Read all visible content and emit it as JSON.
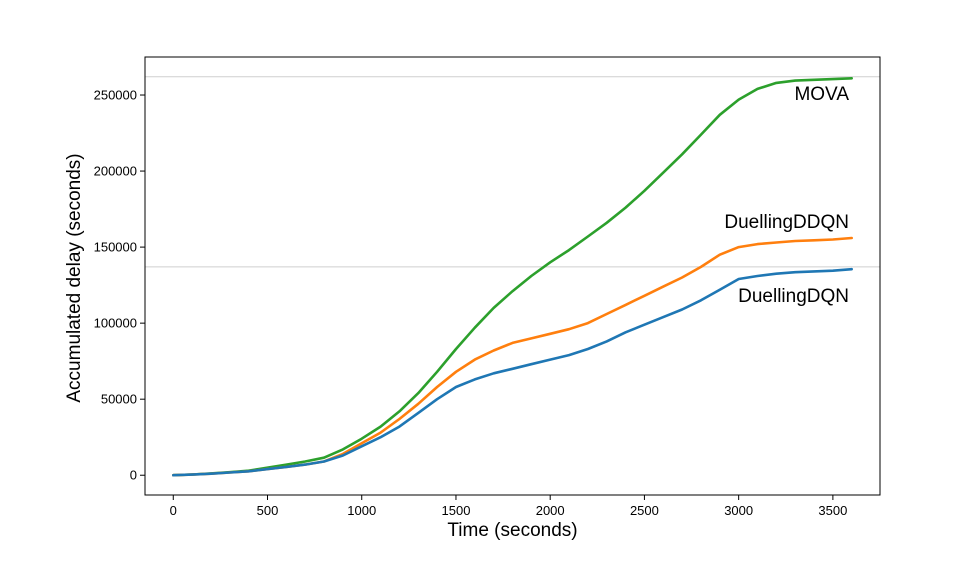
{
  "chart_data": {
    "type": "line",
    "title": "",
    "xlabel": "Time (seconds)",
    "ylabel": "Accumulated delay (seconds)",
    "xlim": [
      -150,
      3750
    ],
    "ylim": [
      -13000,
      275000
    ],
    "x_ticks": [
      0,
      500,
      1000,
      1500,
      2000,
      2500,
      3000,
      3500
    ],
    "y_ticks": [
      0,
      50000,
      100000,
      150000,
      200000,
      250000
    ],
    "grid": false,
    "legend": "none",
    "reference_lines": [
      262000,
      137000
    ],
    "x": [
      0,
      100,
      200,
      300,
      400,
      500,
      600,
      700,
      800,
      900,
      1000,
      1100,
      1200,
      1300,
      1400,
      1500,
      1600,
      1700,
      1800,
      1900,
      2000,
      2100,
      2200,
      2300,
      2400,
      2500,
      2600,
      2700,
      2800,
      2900,
      3000,
      3100,
      3200,
      3300,
      3400,
      3500,
      3600
    ],
    "series": [
      {
        "name": "MOVA",
        "color": "#2ca02c",
        "values": [
          0,
          500,
          1200,
          2000,
          3000,
          5000,
          7000,
          9000,
          11500,
          17000,
          24000,
          32000,
          42000,
          54000,
          68000,
          83000,
          97000,
          110000,
          121000,
          131000,
          140000,
          148000,
          157000,
          166000,
          176000,
          187000,
          199000,
          211000,
          224000,
          237000,
          247000,
          254000,
          258000,
          259500,
          260000,
          260500,
          261000
        ]
      },
      {
        "name": "DuellingDDQN",
        "color": "#ff7f0e",
        "values": [
          0,
          400,
          1000,
          1800,
          2600,
          4000,
          5500,
          7000,
          9000,
          14000,
          21000,
          28000,
          37000,
          47000,
          58000,
          68000,
          76000,
          82000,
          87000,
          90000,
          93000,
          96000,
          100000,
          106000,
          112000,
          118000,
          124000,
          130000,
          137000,
          145000,
          150000,
          152000,
          153000,
          154000,
          154500,
          155000,
          156000
        ]
      },
      {
        "name": "DuellingDQN",
        "color": "#1f77b4",
        "values": [
          0,
          400,
          1000,
          1800,
          2600,
          4000,
          5500,
          7000,
          9000,
          13000,
          19000,
          25000,
          32000,
          41000,
          50000,
          58000,
          63000,
          67000,
          70000,
          73000,
          76000,
          79000,
          83000,
          88000,
          94000,
          99000,
          104000,
          109000,
          115000,
          122000,
          129000,
          131000,
          132500,
          133500,
          134000,
          134500,
          135500
        ]
      }
    ]
  }
}
